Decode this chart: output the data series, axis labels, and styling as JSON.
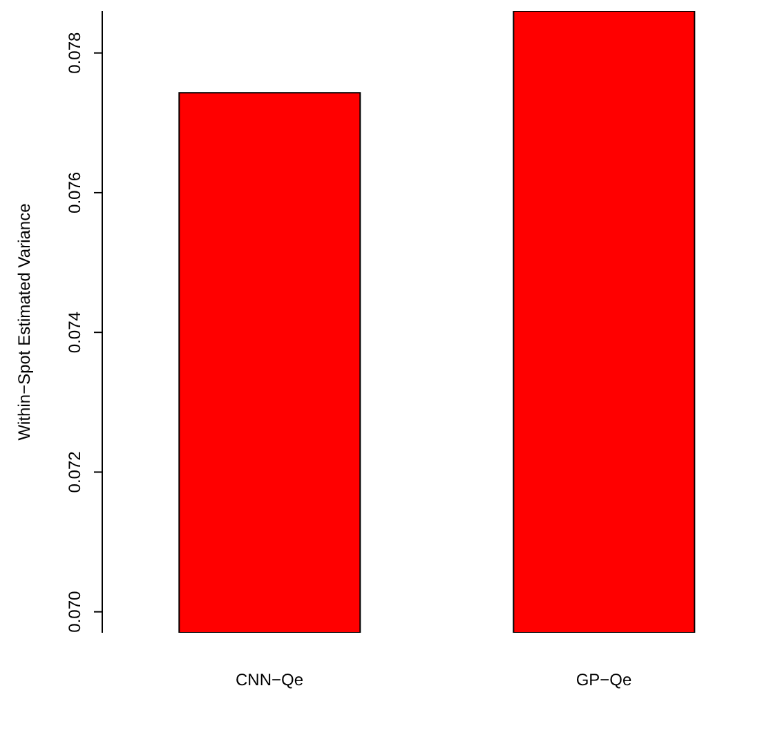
{
  "chart_data": {
    "type": "bar",
    "ylabel": "Within−Spot Estimated Variance",
    "categories": [
      "CNN−Qe",
      "GP−Qe"
    ],
    "values": [
      0.07743,
      0.0786
    ],
    "color": "#ff0000",
    "ylim": [
      0.0697,
      0.0786
    ],
    "yticks": [
      {
        "value": 0.07,
        "label": "0.070"
      },
      {
        "value": 0.072,
        "label": "0.072"
      },
      {
        "value": 0.074,
        "label": "0.074"
      },
      {
        "value": 0.076,
        "label": "0.076"
      },
      {
        "value": 0.078,
        "label": "0.078"
      }
    ],
    "grid": false
  }
}
